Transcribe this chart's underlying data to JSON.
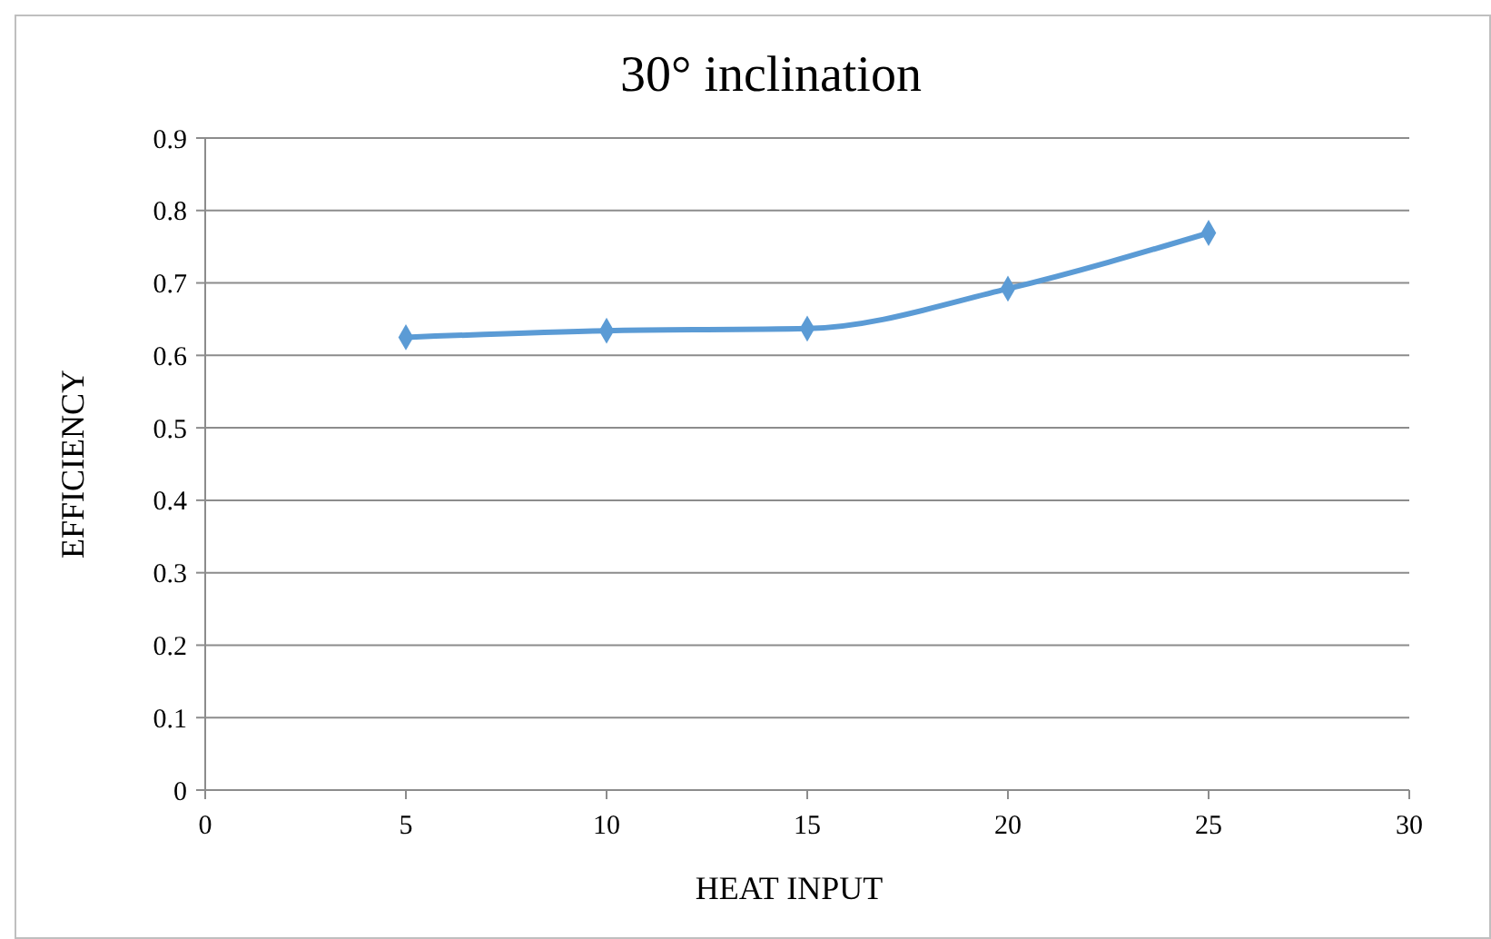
{
  "chart_data": {
    "type": "line",
    "title": "30° inclination",
    "xlabel": "HEAT INPUT",
    "ylabel": "EFFICIENCY",
    "x": [
      5,
      10,
      15,
      20,
      25
    ],
    "series": [
      {
        "color": "#5b9bd5",
        "values": [
          0.625,
          0.634,
          0.637,
          0.692,
          0.769
        ]
      }
    ],
    "xlim": [
      0,
      30
    ],
    "xticks": [
      0,
      5,
      10,
      15,
      20,
      25,
      30
    ],
    "ylim": [
      0,
      0.9
    ],
    "yticks": [
      0,
      0.1,
      0.2,
      0.3,
      0.4,
      0.5,
      0.6,
      0.7,
      0.8,
      0.9
    ],
    "grid": "y",
    "marker": "diamond",
    "line_style": "solid"
  }
}
